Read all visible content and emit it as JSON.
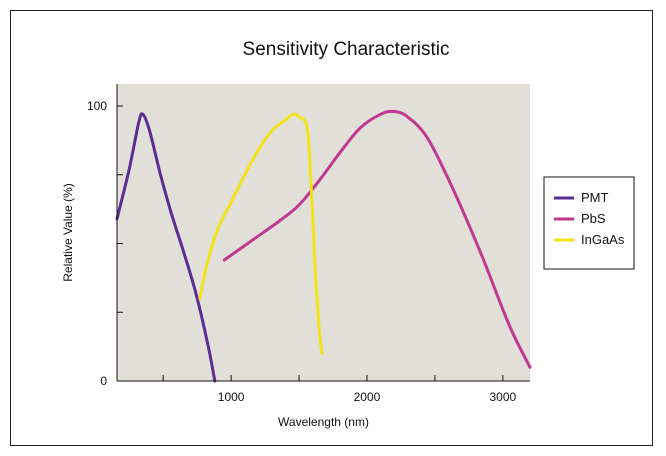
{
  "chart_data": {
    "type": "line",
    "title": "Sensitivity Characteristic",
    "xlabel": "Wavelength (nm)",
    "ylabel": "Relative Value (%)",
    "xlim": [
      160,
      3200
    ],
    "ylim": [
      0,
      100
    ],
    "x_ticks": [
      1000,
      2000,
      3000
    ],
    "y_ticks": [
      0,
      100
    ],
    "grid": false,
    "legend_position": "right",
    "plot_background": "#e2dfd8",
    "series": [
      {
        "name": "PMT",
        "color": "#5b2d91",
        "points": [
          [
            160,
            59
          ],
          [
            250,
            77
          ],
          [
            320,
            94
          ],
          [
            350,
            97
          ],
          [
            400,
            91
          ],
          [
            480,
            75
          ],
          [
            560,
            61
          ],
          [
            650,
            47
          ],
          [
            740,
            32
          ],
          [
            830,
            13
          ],
          [
            880,
            0
          ]
        ]
      },
      {
        "name": "PbS",
        "color": "#c0398f",
        "points": [
          [
            950,
            44
          ],
          [
            1150,
            51
          ],
          [
            1350,
            58
          ],
          [
            1500,
            64
          ],
          [
            1650,
            73
          ],
          [
            1800,
            83
          ],
          [
            1950,
            92
          ],
          [
            2100,
            97
          ],
          [
            2200,
            98
          ],
          [
            2300,
            96
          ],
          [
            2450,
            88
          ],
          [
            2650,
            68
          ],
          [
            2850,
            45
          ],
          [
            3050,
            20
          ],
          [
            3200,
            5
          ]
        ]
      },
      {
        "name": "InGaAs",
        "color": "#f2e219",
        "points": [
          [
            770,
            30
          ],
          [
            820,
            42
          ],
          [
            900,
            55
          ],
          [
            1000,
            65
          ],
          [
            1100,
            75
          ],
          [
            1200,
            84
          ],
          [
            1300,
            91
          ],
          [
            1400,
            95
          ],
          [
            1460,
            97
          ],
          [
            1500,
            96
          ],
          [
            1560,
            92
          ],
          [
            1590,
            70
          ],
          [
            1620,
            40
          ],
          [
            1650,
            18
          ],
          [
            1670,
            10
          ]
        ]
      }
    ]
  }
}
